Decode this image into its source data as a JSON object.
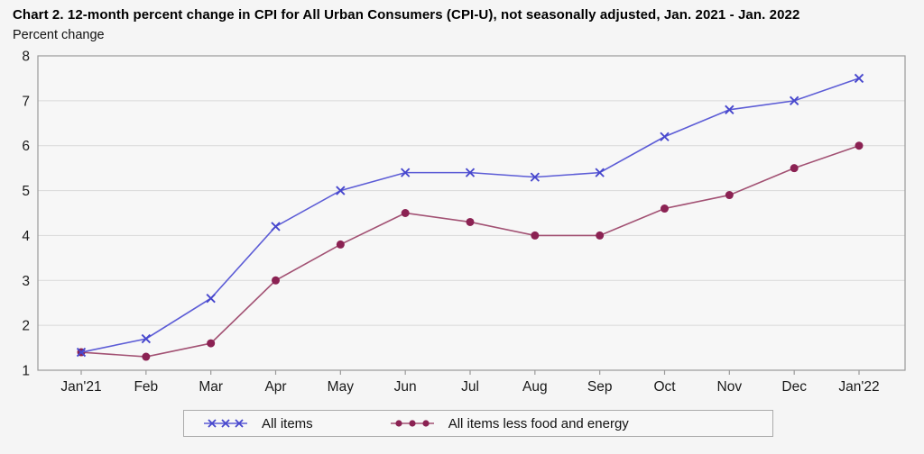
{
  "header": {
    "title": "Chart 2. 12-month percent change in CPI for All Urban Consumers (CPI-U), not seasonally adjusted, Jan. 2021 - Jan. 2022",
    "subtitle": "Percent change"
  },
  "chart_data": {
    "type": "line",
    "title": "Chart 2. 12-month percent change in CPI for All Urban Consumers (CPI-U), not seasonally adjusted, Jan. 2021 - Jan. 2022",
    "ylabel": "Percent change",
    "xlabel": "",
    "categories": [
      "Jan'21",
      "Feb",
      "Mar",
      "Apr",
      "May",
      "Jun",
      "Jul",
      "Aug",
      "Sep",
      "Oct",
      "Nov",
      "Dec",
      "Jan'22"
    ],
    "series": [
      {
        "name": "All items",
        "marker": "x",
        "color": "#4747cd",
        "line_color": "#5c5cd6",
        "values": [
          1.4,
          1.7,
          2.6,
          4.2,
          5.0,
          5.4,
          5.4,
          5.3,
          5.4,
          6.2,
          6.8,
          7.0,
          7.5
        ]
      },
      {
        "name": "All items less food and energy",
        "marker": "circle",
        "color": "#8b2253",
        "line_color": "#a25173",
        "values": [
          1.4,
          1.3,
          1.6,
          3.0,
          3.8,
          4.5,
          4.3,
          4.0,
          4.0,
          4.6,
          4.9,
          5.5,
          6.0
        ]
      }
    ],
    "ylim": [
      1,
      8
    ],
    "yticks": [
      1,
      2,
      3,
      4,
      5,
      6,
      7,
      8
    ],
    "grid": true,
    "legend_position": "bottom"
  },
  "colors": {
    "page_background": "#f5f5f5",
    "plot_background": "#f7f7f7",
    "gridline": "#d9d9d9",
    "plot_border": "#9a9a9a",
    "tick": "#9a9a9a",
    "axis_text": "#1a1a1a"
  }
}
